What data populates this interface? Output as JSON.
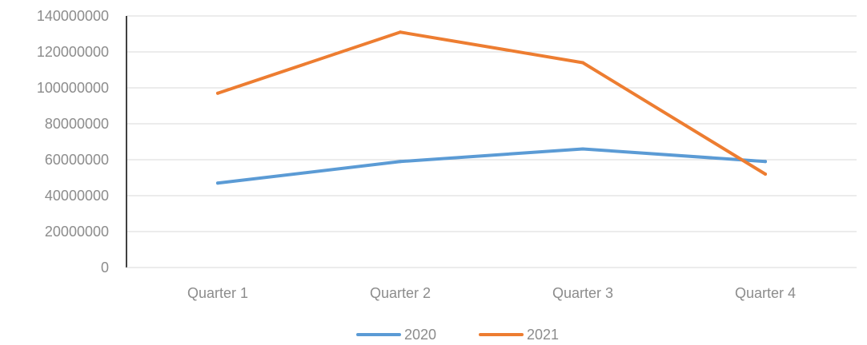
{
  "chart_data": {
    "type": "line",
    "title": "",
    "xlabel": "",
    "ylabel": "",
    "categories": [
      "Quarter 1",
      "Quarter 2",
      "Quarter 3",
      "Quarter 4"
    ],
    "y_ticks": [
      "0",
      "20000000",
      "40000000",
      "60000000",
      "80000000",
      "100000000",
      "120000000",
      "140000000"
    ],
    "ylim": [
      0,
      140000000
    ],
    "grid": true,
    "legend_position": "bottom",
    "series": [
      {
        "name": "2020",
        "color": "#5b9bd5",
        "values": [
          47000000,
          59000000,
          66000000,
          59000000
        ]
      },
      {
        "name": "2021",
        "color": "#ed7d31",
        "values": [
          97000000,
          131000000,
          114000000,
          52000000
        ]
      }
    ]
  }
}
